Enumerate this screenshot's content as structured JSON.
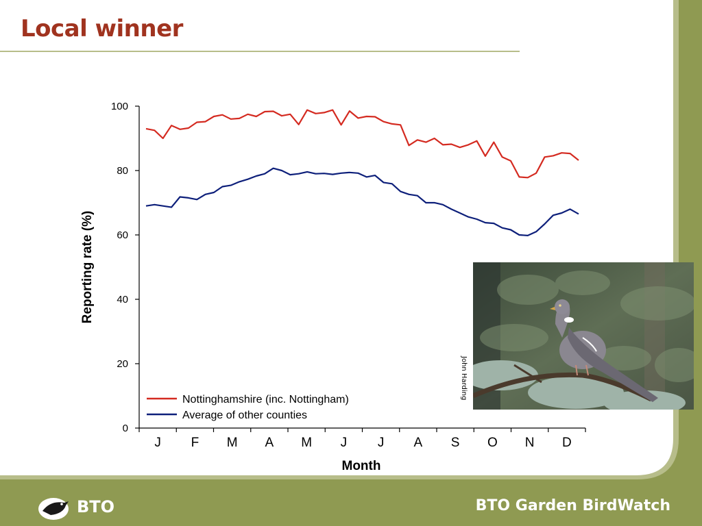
{
  "slide": {
    "title": "Local winner",
    "footer_brand": "BTO Garden BirdWatch",
    "logo_text": "BTO",
    "photo_credit": "John Harding",
    "colors": {
      "title": "#a0331f",
      "frame_green": "#8f9a52",
      "frame_light": "#b7bd8a"
    }
  },
  "chart_data": {
    "type": "line",
    "xlabel": "Month",
    "ylabel": "Reporting rate (%)",
    "ylim": [
      0,
      100
    ],
    "yticks": [
      0,
      20,
      40,
      60,
      80,
      100
    ],
    "months": [
      "J",
      "F",
      "M",
      "A",
      "M",
      "J",
      "J",
      "A",
      "S",
      "O",
      "N",
      "D"
    ],
    "x_unit": "week of year",
    "x": [
      1,
      2,
      3,
      4,
      5,
      6,
      7,
      8,
      9,
      10,
      11,
      12,
      13,
      14,
      15,
      16,
      17,
      18,
      19,
      20,
      21,
      22,
      23,
      24,
      25,
      26,
      27,
      28,
      29,
      30,
      31,
      32,
      33,
      34,
      35,
      36,
      37,
      38,
      39,
      40,
      41,
      42,
      43,
      44,
      45,
      46,
      47,
      48,
      49,
      50,
      51,
      52
    ],
    "legend_position": "bottom-left",
    "series": [
      {
        "name": "Nottinghamshire (inc. Nottingham)",
        "color": "#d42a20",
        "values": [
          93,
          92.5,
          90,
          94,
          92.8,
          93.2,
          95,
          95.2,
          96.8,
          97.3,
          96,
          96.2,
          97.5,
          96.8,
          98.3,
          98.4,
          97,
          97.5,
          94.3,
          98.8,
          97.7,
          98,
          98.8,
          94.2,
          98.5,
          96.3,
          96.8,
          96.7,
          95.2,
          94.5,
          94.2,
          87.8,
          89.5,
          88.8,
          90,
          88,
          88.2,
          87.2,
          88,
          89.2,
          84.5,
          88.8,
          84.2,
          83,
          78,
          77.8,
          79.2,
          84.2,
          84.6,
          85.5,
          85.3,
          83.2
        ]
      },
      {
        "name": "Average of other counties",
        "color": "#0d1f7a",
        "values": [
          69,
          69.4,
          69,
          68.6,
          71.8,
          71.5,
          71,
          72.6,
          73.2,
          75,
          75.4,
          76.5,
          77.3,
          78.3,
          79,
          80.7,
          80,
          78.7,
          79,
          79.6,
          79,
          79.1,
          78.8,
          79.2,
          79.4,
          79.2,
          78,
          78.5,
          76.3,
          75.9,
          73.5,
          72.6,
          72.2,
          70,
          70,
          69.4,
          68,
          66.8,
          65.6,
          64.9,
          63.8,
          63.6,
          62.2,
          61.6,
          60,
          59.8,
          61,
          63.4,
          66.1,
          66.8,
          68,
          66.5
        ]
      }
    ]
  }
}
